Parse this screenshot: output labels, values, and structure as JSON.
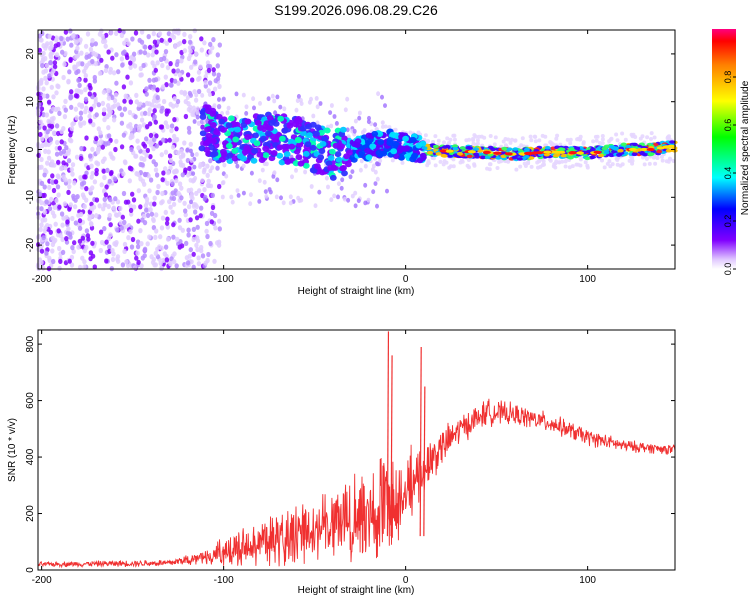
{
  "title": "S199.2026.096.08.29.C26",
  "chart_data": [
    {
      "type": "heatmap",
      "name": "spectrogram",
      "xlabel": "Height of straight line (km)",
      "ylabel": "Frequency (Hz)",
      "xlim": [
        -202,
        148
      ],
      "ylim": [
        -25,
        25
      ],
      "xticks": [
        -200,
        -100,
        0,
        100
      ],
      "yticks": [
        -20,
        -10,
        0,
        10,
        20
      ],
      "colorbar": {
        "label": "Normalized spectral amplitude",
        "range": [
          0,
          1
        ],
        "ticks": [
          0.0,
          0.2,
          0.4,
          0.6,
          0.8
        ],
        "tick_labels": [
          "0.0",
          "0.2",
          "0.4",
          "0.6",
          "0.8"
        ],
        "colormap": [
          "#ffffff",
          "#8000ff",
          "#0000ff",
          "#00ffff",
          "#00ff00",
          "#ffff00",
          "#ff8000",
          "#ff0000",
          "#ff0080"
        ]
      },
      "signal_trace": [
        {
          "x": -110,
          "y": 4.5
        },
        {
          "x": -100,
          "y": 1.5
        },
        {
          "x": -80,
          "y": 2.5
        },
        {
          "x": -60,
          "y": 2.0
        },
        {
          "x": -40,
          "y": -1.0
        },
        {
          "x": -20,
          "y": 0.5
        },
        {
          "x": -10,
          "y": 1.5
        },
        {
          "x": 0,
          "y": 0.5
        },
        {
          "x": 20,
          "y": -0.3
        },
        {
          "x": 40,
          "y": -0.5
        },
        {
          "x": 60,
          "y": -1.0
        },
        {
          "x": 80,
          "y": -0.5
        },
        {
          "x": 100,
          "y": -0.8
        },
        {
          "x": 120,
          "y": 0.0
        },
        {
          "x": 135,
          "y": 0.0
        },
        {
          "x": 148,
          "y": 0.8
        }
      ]
    },
    {
      "type": "line",
      "name": "snr",
      "xlabel": "Height of straight line (km)",
      "ylabel": "SNR (10 * v/v)",
      "xlim": [
        -202,
        148
      ],
      "ylim": [
        0,
        850
      ],
      "xticks": [
        -200,
        -100,
        0,
        100
      ],
      "yticks": [
        0,
        200,
        400,
        600,
        800
      ],
      "color": "#f03030",
      "envelope": [
        {
          "x": -202,
          "base": 20,
          "amp": 10
        },
        {
          "x": -130,
          "base": 25,
          "amp": 15
        },
        {
          "x": -110,
          "base": 50,
          "amp": 30
        },
        {
          "x": -90,
          "base": 90,
          "amp": 80
        },
        {
          "x": -70,
          "base": 120,
          "amp": 110
        },
        {
          "x": -50,
          "base": 160,
          "amp": 140
        },
        {
          "x": -30,
          "base": 200,
          "amp": 180
        },
        {
          "x": -15,
          "base": 260,
          "amp": 220
        },
        {
          "x": -5,
          "base": 280,
          "amp": 200
        },
        {
          "x": 5,
          "base": 330,
          "amp": 120
        },
        {
          "x": 15,
          "base": 400,
          "amp": 90
        },
        {
          "x": 30,
          "base": 500,
          "amp": 60
        },
        {
          "x": 45,
          "base": 560,
          "amp": 55
        },
        {
          "x": 60,
          "base": 550,
          "amp": 45
        },
        {
          "x": 80,
          "base": 520,
          "amp": 40
        },
        {
          "x": 100,
          "base": 470,
          "amp": 35
        },
        {
          "x": 120,
          "base": 440,
          "amp": 25
        },
        {
          "x": 148,
          "base": 425,
          "amp": 20
        }
      ],
      "spikes": [
        {
          "x": -10,
          "y": 845
        },
        {
          "x": -8,
          "y": 760
        },
        {
          "x": 8,
          "y": 790
        },
        {
          "x": 10,
          "y": 650
        }
      ]
    }
  ]
}
